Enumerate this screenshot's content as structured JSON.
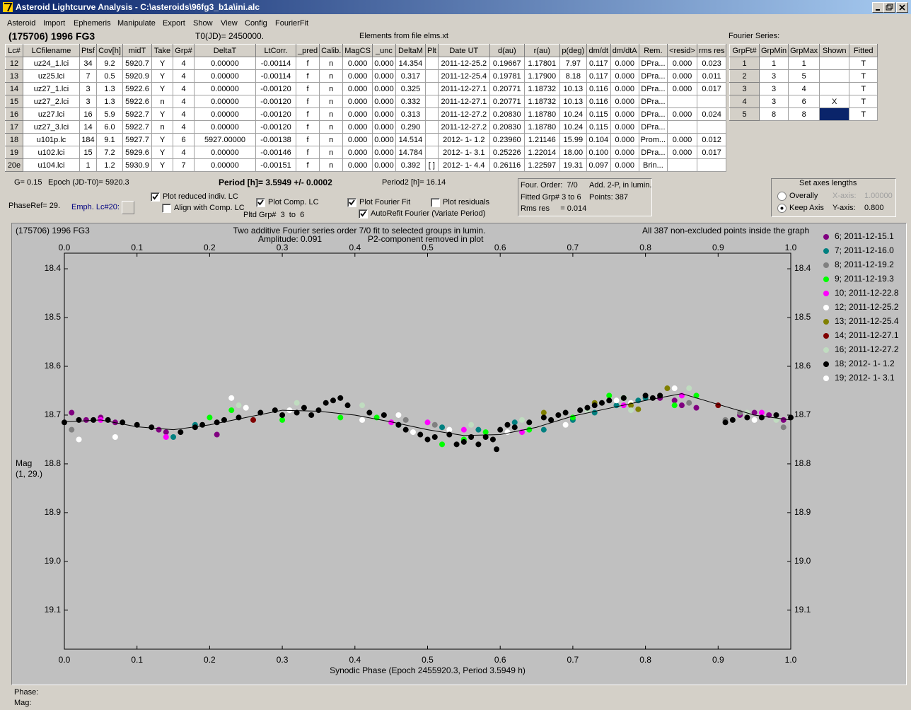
{
  "window": {
    "title": "Asteroid Lightcurve Analysis - C:\\asteroids\\96fg3_b1a\\ini.alc"
  },
  "menu": [
    "Asteroid",
    "Import",
    "Ephemeris",
    "Manipulate",
    "Export",
    "Show",
    "View",
    "Config",
    "FourierFit"
  ],
  "header": {
    "object": "(175706) 1996 FG3",
    "t0": "T0(JD)= 2450000.",
    "elements": "Elements from file elms.xt",
    "fourier_label": "Fourier Series:"
  },
  "main_table": {
    "columns": [
      "Lc#",
      "LCfilename",
      "Ptsf",
      "Cov[h]",
      "midT",
      "Take",
      "Grp#",
      "DeltaT",
      "LtCorr.",
      "_pred",
      "Calib.",
      "MagCS",
      "_unc",
      "DeltaM",
      "Plt",
      "Date UT",
      "d(au)",
      "r(au)",
      "p(deg)",
      "dm/dt",
      "dm/dtA",
      "Rem.",
      "<resid>",
      "rms res"
    ],
    "rows": [
      [
        "12",
        "uz24_1.lci",
        "34",
        "9.2",
        "5920.7",
        "Y",
        "4",
        "0.00000",
        "-0.00114",
        "f",
        "n",
        "0.000",
        "0.000",
        "14.354",
        null,
        "2011-12-25.2",
        "0.19667",
        "1.17801",
        "7.97",
        "0.117",
        "0.000",
        "DPra...",
        "0.000",
        "0.023"
      ],
      [
        "13",
        "uz25.lci",
        "7",
        "0.5",
        "5920.9",
        "Y",
        "4",
        "0.00000",
        "-0.00114",
        "f",
        "n",
        "0.000",
        "0.000",
        "0.317",
        null,
        "2011-12-25.4",
        "0.19781",
        "1.17900",
        "8.18",
        "0.117",
        "0.000",
        "DPra...",
        "0.000",
        "0.011"
      ],
      [
        "14",
        "uz27_1.lci",
        "3",
        "1.3",
        "5922.6",
        "Y",
        "4",
        "0.00000",
        "-0.00120",
        "f",
        "n",
        "0.000",
        "0.000",
        "0.325",
        null,
        "2011-12-27.1",
        "0.20771",
        "1.18732",
        "10.13",
        "0.116",
        "0.000",
        "DPra...",
        "0.000",
        "0.017"
      ],
      [
        "15",
        "uz27_2.lci",
        "3",
        "1.3",
        "5922.6",
        "n",
        "4",
        "0.00000",
        "-0.00120",
        "f",
        "n",
        "0.000",
        "0.000",
        "0.332",
        null,
        "2011-12-27.1",
        "0.20771",
        "1.18732",
        "10.13",
        "0.116",
        "0.000",
        "DPra...",
        null,
        null
      ],
      [
        "16",
        "uz27.lci",
        "16",
        "5.9",
        "5922.7",
        "Y",
        "4",
        "0.00000",
        "-0.00120",
        "f",
        "n",
        "0.000",
        "0.000",
        "0.313",
        null,
        "2011-12-27.2",
        "0.20830",
        "1.18780",
        "10.24",
        "0.115",
        "0.000",
        "DPra...",
        "0.000",
        "0.024"
      ],
      [
        "17",
        "uz27_3.lci",
        "14",
        "6.0",
        "5922.7",
        "n",
        "4",
        "0.00000",
        "-0.00120",
        "f",
        "n",
        "0.000",
        "0.000",
        "0.290",
        null,
        "2011-12-27.2",
        "0.20830",
        "1.18780",
        "10.24",
        "0.115",
        "0.000",
        "DPra...",
        null,
        null
      ],
      [
        "18",
        "u101p.lc",
        "184",
        "9.1",
        "5927.7",
        "Y",
        "6",
        "5927.00000",
        "-0.00138",
        "f",
        "n",
        "0.000",
        "0.000",
        "14.514",
        null,
        "2012- 1- 1.2",
        "0.23960",
        "1.21146",
        "15.99",
        "0.104",
        "0.000",
        "Prom...",
        "0.000",
        "0.012"
      ],
      [
        "19",
        "u102.lci",
        "15",
        "7.2",
        "5929.6",
        "Y",
        "4",
        "0.00000",
        "-0.00146",
        "f",
        "n",
        "0.000",
        "0.000",
        "14.784",
        null,
        "2012- 1- 3.1",
        "0.25226",
        "1.22014",
        "18.00",
        "0.100",
        "0.000",
        "DPra...",
        "0.000",
        "0.017"
      ],
      [
        "20e",
        "u104.lci",
        "1",
        "1.2",
        "5930.9",
        "Y",
        "7",
        "0.00000",
        "-0.00151",
        "f",
        "n",
        "0.000",
        "0.000",
        "0.392",
        "[ ]",
        "2012- 1- 4.4",
        "0.26116",
        "1.22597",
        "19.31",
        "0.097",
        "0.000",
        "Brin...",
        null,
        null
      ]
    ]
  },
  "fourier_table": {
    "columns": [
      "GrpFt#",
      "GrpMin",
      "GrpMax",
      "Shown",
      "Fitted"
    ],
    "rows": [
      [
        "1",
        "1",
        "1",
        null,
        "T"
      ],
      [
        "2",
        "3",
        "5",
        null,
        "T"
      ],
      [
        "3",
        "3",
        "4",
        null,
        "T"
      ],
      [
        "4",
        "3",
        "6",
        "X",
        "T"
      ],
      [
        "5",
        "8",
        "8",
        null,
        "T"
      ]
    ]
  },
  "info": {
    "g": "G= 0.15",
    "epoch": "Epoch (JD-T0)= 5920.3",
    "period": "Period [h]= 3.5949 +/- 0.0002",
    "period2": "Period2 [h]= 16.14",
    "phaseref": "PhaseRef= 29.",
    "emph": "Emph. Lc#20:",
    "pltd_grp": "Pltd Grp#  3  to  6"
  },
  "checkboxes": [
    {
      "label": "Plot reduced indiv. LC",
      "checked": true
    },
    {
      "label": "Align with Comp. LC",
      "checked": false
    },
    {
      "label": "Plot Comp. LC",
      "checked": true
    },
    {
      "label": "Plot Fourier Fit",
      "checked": true
    },
    {
      "label": "AutoRefit Fourier (Variate Period)",
      "checked": true
    },
    {
      "label": "Plot residuals",
      "checked": false
    }
  ],
  "fit_box": [
    "Four. Order:  7/0",
    "Add. 2-P, in lumin.",
    "Fitted Grp# 3 to 6",
    "Points: 387",
    "Rms res     = 0.014"
  ],
  "axes_group": {
    "title": "Set axes lengths",
    "options": [
      {
        "label": "Overally",
        "selected": false
      },
      {
        "label": "Keep Axis",
        "selected": true
      }
    ],
    "x_label": "X-axis:",
    "x_value": "1.00000",
    "y_label": "Y-axis:",
    "y_value": "0.800"
  },
  "footer": [
    "Phase:",
    "Mag:"
  ],
  "chart_data": {
    "type": "scatter",
    "title": "(175706) 1996 FG3",
    "subtitle": [
      "Two additive Fourier series order 7/0 fit to selected groups in lumin.",
      "Amplitude: 0.091",
      "P2-component removed in plot"
    ],
    "annotation": "All 387 non-excluded points inside the graph",
    "x_label": "Synodic Phase (Epoch 2455920.3, Period 3.5949 h)",
    "y_label": [
      "Mag",
      "(1, 29.)"
    ],
    "xlim": [
      0,
      1
    ],
    "xticks": [
      {
        "value": 0,
        "label": "0.0"
      },
      0.1,
      0.2,
      0.3,
      0.4,
      0.5,
      0.6,
      0.7,
      0.8,
      0.9,
      {
        "value": 1,
        "label": "1.0"
      }
    ],
    "ylim": [
      18.368,
      19.18
    ],
    "y_inverted": true,
    "yticks": [
      18.4,
      18.5,
      18.6,
      18.7,
      18.8,
      18.9,
      {
        "value": 19,
        "label": "19.0"
      },
      19.1
    ],
    "legend": "right",
    "series": [
      {
        "name": "6; 2011-12-15.1",
        "color": "#800080",
        "x": [
          0.01,
          0.03,
          0.05,
          0.07,
          0.13,
          0.14,
          0.21,
          0.82,
          0.84,
          0.85,
          0.87,
          0.93,
          0.95,
          0.97,
          0.99
        ],
        "values": [
          18.695,
          18.71,
          18.705,
          18.715,
          18.73,
          18.735,
          18.74,
          18.665,
          18.67,
          18.68,
          18.685,
          18.7,
          18.695,
          18.7,
          18.71
        ]
      },
      {
        "name": "7; 2011-12-16.0",
        "color": "#008080",
        "x": [
          0.15,
          0.18,
          0.46,
          0.52,
          0.57,
          0.62,
          0.66,
          0.7,
          0.73,
          0.76,
          0.79,
          0.8
        ],
        "values": [
          18.745,
          18.72,
          18.72,
          18.725,
          18.73,
          18.715,
          18.73,
          18.71,
          18.695,
          18.68,
          18.67,
          18.665
        ]
      },
      {
        "name": "8; 2011-12-19.2",
        "color": "#808080",
        "x": [
          0.01,
          0.47,
          0.51,
          0.86,
          0.91,
          0.93,
          0.99
        ],
        "values": [
          18.73,
          18.71,
          18.72,
          18.675,
          18.71,
          18.695,
          18.725
        ]
      },
      {
        "name": "9; 2011-12-19.3",
        "color": "#00ff00",
        "x": [
          0.2,
          0.23,
          0.3,
          0.38,
          0.43,
          0.52,
          0.55,
          0.58,
          0.64,
          0.7,
          0.75,
          0.77,
          0.84,
          0.87
        ],
        "values": [
          18.705,
          18.69,
          18.71,
          18.705,
          18.705,
          18.76,
          18.75,
          18.735,
          18.73,
          18.705,
          18.66,
          18.665,
          18.68,
          18.66
        ]
      },
      {
        "name": "10; 2011-12-22.8",
        "color": "#ff00ff",
        "x": [
          0.05,
          0.14,
          0.45,
          0.5,
          0.55,
          0.63,
          0.77,
          0.85,
          0.96
        ],
        "values": [
          18.71,
          18.745,
          18.715,
          18.715,
          18.73,
          18.735,
          18.68,
          18.66,
          18.695
        ]
      },
      {
        "name": "12; 2011-12-25.2",
        "color": "#ffffff",
        "x": [
          0.02,
          0.07,
          0.23,
          0.25,
          0.31,
          0.41,
          0.48,
          0.53,
          0.61,
          0.69,
          0.78,
          0.84
        ],
        "values": [
          18.75,
          18.745,
          18.665,
          18.685,
          18.69,
          18.71,
          18.735,
          18.73,
          18.735,
          18.72,
          18.675,
          18.645
        ]
      },
      {
        "name": "13; 2011-12-25.4",
        "color": "#808000",
        "x": [
          0.66,
          0.73,
          0.78,
          0.79,
          0.83
        ],
        "values": [
          18.695,
          18.675,
          18.68,
          18.688,
          18.645
        ]
      },
      {
        "name": "14; 2011-12-27.1",
        "color": "#800000",
        "x": [
          0.26,
          0.9
        ],
        "values": [
          18.71,
          18.68
        ]
      },
      {
        "name": "16; 2011-12-27.2",
        "color": "#c0dcc0",
        "x": [
          0.24,
          0.32,
          0.41,
          0.56,
          0.63,
          0.67,
          0.72,
          0.78,
          0.86,
          0.94,
          0.98
        ],
        "values": [
          18.68,
          18.675,
          18.68,
          18.72,
          18.71,
          18.71,
          18.69,
          18.69,
          18.645,
          18.695,
          18.71
        ]
      },
      {
        "name": "18; 2012- 1- 1.2",
        "color": "#000000",
        "x": [
          0.0,
          0.02,
          0.04,
          0.06,
          0.08,
          0.1,
          0.12,
          0.16,
          0.18,
          0.19,
          0.21,
          0.22,
          0.24,
          0.27,
          0.29,
          0.3,
          0.32,
          0.33,
          0.34,
          0.35,
          0.36,
          0.37,
          0.38,
          0.39,
          0.42,
          0.44,
          0.46,
          0.47,
          0.49,
          0.5,
          0.51,
          0.53,
          0.54,
          0.55,
          0.56,
          0.57,
          0.58,
          0.59,
          0.595,
          0.6,
          0.61,
          0.62,
          0.64,
          0.66,
          0.67,
          0.68,
          0.69,
          0.71,
          0.72,
          0.73,
          0.74,
          0.75,
          0.77,
          0.8,
          0.81,
          0.82,
          0.91,
          0.92,
          0.94,
          0.96,
          0.98,
          1.0
        ],
        "values": [
          18.715,
          18.71,
          18.71,
          18.71,
          18.715,
          18.72,
          18.725,
          18.735,
          18.725,
          18.72,
          18.715,
          18.71,
          18.705,
          18.695,
          18.69,
          18.7,
          18.695,
          18.685,
          18.7,
          18.69,
          18.675,
          18.67,
          18.665,
          18.68,
          18.695,
          18.7,
          18.72,
          18.73,
          18.74,
          18.75,
          18.745,
          18.74,
          18.76,
          18.755,
          18.745,
          18.76,
          18.745,
          18.75,
          18.77,
          18.73,
          18.72,
          18.725,
          18.715,
          18.705,
          18.71,
          18.7,
          18.695,
          18.69,
          18.685,
          18.68,
          18.675,
          18.67,
          18.665,
          18.66,
          18.665,
          18.66,
          18.715,
          18.71,
          18.705,
          18.705,
          18.7,
          18.705
        ]
      },
      {
        "name": "19; 2012- 1- 3.1",
        "color": "#ffffff",
        "x": [
          0.46,
          0.76,
          0.95
        ],
        "values": [
          18.7,
          18.67,
          18.71
        ]
      }
    ],
    "fit_curve": {
      "color": "#000000",
      "x": [
        0,
        0.05,
        0.1,
        0.15,
        0.2,
        0.25,
        0.3,
        0.35,
        0.4,
        0.45,
        0.5,
        0.55,
        0.6,
        0.65,
        0.7,
        0.75,
        0.8,
        0.85,
        0.9,
        0.95,
        1
      ],
      "values": [
        18.714,
        18.71,
        18.724,
        18.73,
        18.72,
        18.705,
        18.69,
        18.692,
        18.7,
        18.714,
        18.73,
        18.742,
        18.74,
        18.725,
        18.702,
        18.686,
        18.67,
        18.656,
        18.678,
        18.7,
        18.71
      ]
    }
  }
}
